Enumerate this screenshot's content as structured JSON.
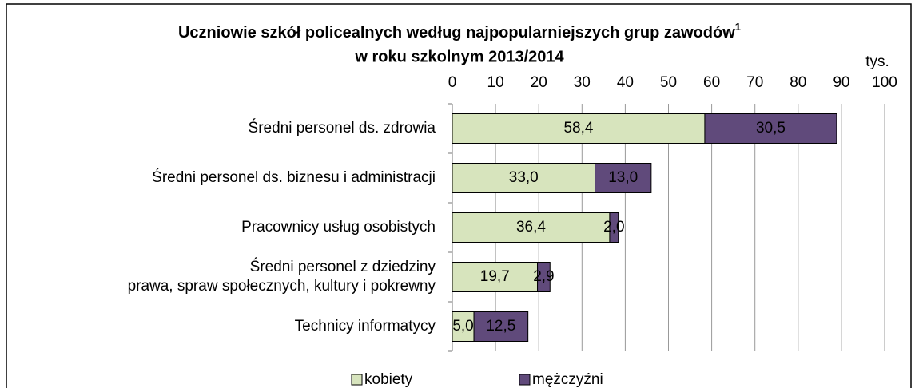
{
  "chart_data": {
    "type": "bar",
    "orientation": "horizontal",
    "stacked": true,
    "title": "Uczniowie szkół policealnych według najpopularniejszych grup zawodów",
    "title_note": "1",
    "subtitle": "w roku szkolnym 2013/2014",
    "x_unit": "tys.",
    "categories": [
      "Średni personel ds. zdrowia",
      "Średni personel ds. biznesu i administracji",
      "Pracownicy usług osobistych",
      "Średni personel z dziedziny\nprawa, spraw społecznych, kultury i pokrewny",
      "Technicy informatycy"
    ],
    "series": [
      {
        "name": "kobiety",
        "color": "#d7e4bd",
        "label_color": "#000000",
        "values": [
          58.4,
          33.0,
          36.4,
          19.7,
          5.0
        ],
        "value_labels": [
          "58,4",
          "33,0",
          "36,4",
          "19,7",
          "5,0"
        ]
      },
      {
        "name": "mężczyźni",
        "color": "#604a7b",
        "label_color": "#ffffff",
        "values": [
          30.5,
          13.0,
          2.0,
          2.9,
          12.5
        ],
        "value_labels": [
          "30,5",
          "13,0",
          "2,0",
          "2,9",
          "12,5"
        ]
      }
    ],
    "xlim": [
      0,
      100
    ],
    "xticks": [
      0,
      10,
      20,
      30,
      40,
      50,
      60,
      70,
      80,
      90,
      100
    ],
    "grid": true
  }
}
